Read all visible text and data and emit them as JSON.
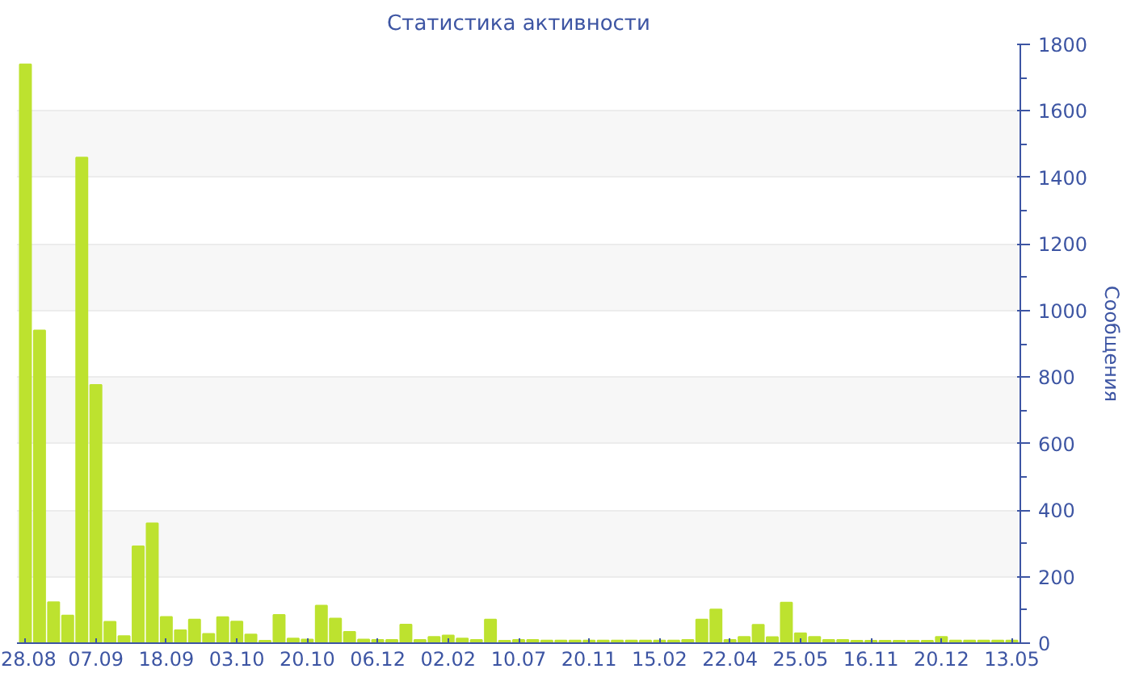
{
  "chart_data": {
    "type": "bar",
    "title": "Статистика активности",
    "ylabel": "Сообщения",
    "categories": [
      "28.08",
      null,
      null,
      null,
      null,
      "07.09",
      null,
      null,
      null,
      null,
      "18.09",
      null,
      null,
      null,
      null,
      "03.10",
      null,
      null,
      null,
      null,
      "20.10",
      null,
      null,
      null,
      null,
      "06.12",
      null,
      null,
      null,
      null,
      "02.02",
      null,
      null,
      null,
      null,
      "10.07",
      null,
      null,
      null,
      null,
      "20.11",
      null,
      null,
      null,
      null,
      "15.02",
      null,
      null,
      null,
      null,
      "22.04",
      null,
      null,
      null,
      null,
      "25.05",
      null,
      null,
      null,
      null,
      "16.11",
      null,
      null,
      null,
      null,
      "20.12",
      null,
      null,
      null,
      null,
      "13.05"
    ],
    "values": [
      1740,
      940,
      123,
      83,
      1460,
      776,
      64,
      21,
      291,
      360,
      79,
      39,
      71,
      28,
      78,
      65,
      26,
      7,
      85,
      14,
      11,
      113,
      74,
      34,
      11,
      10,
      10,
      56,
      10,
      19,
      23,
      14,
      10,
      71,
      7,
      10,
      10,
      8,
      8,
      8,
      8,
      8,
      8,
      8,
      8,
      8,
      8,
      10,
      71,
      101,
      10,
      19,
      55,
      18,
      122,
      30,
      19,
      10,
      10,
      7,
      7,
      7,
      7,
      7,
      7,
      19,
      8,
      8,
      8,
      8,
      8
    ],
    "color": "#bde22f",
    "ylim": [
      0,
      1800
    ],
    "yticks": [
      0,
      200,
      400,
      600,
      800,
      1000,
      1200,
      1400,
      1600,
      1800
    ],
    "grid": "y"
  }
}
